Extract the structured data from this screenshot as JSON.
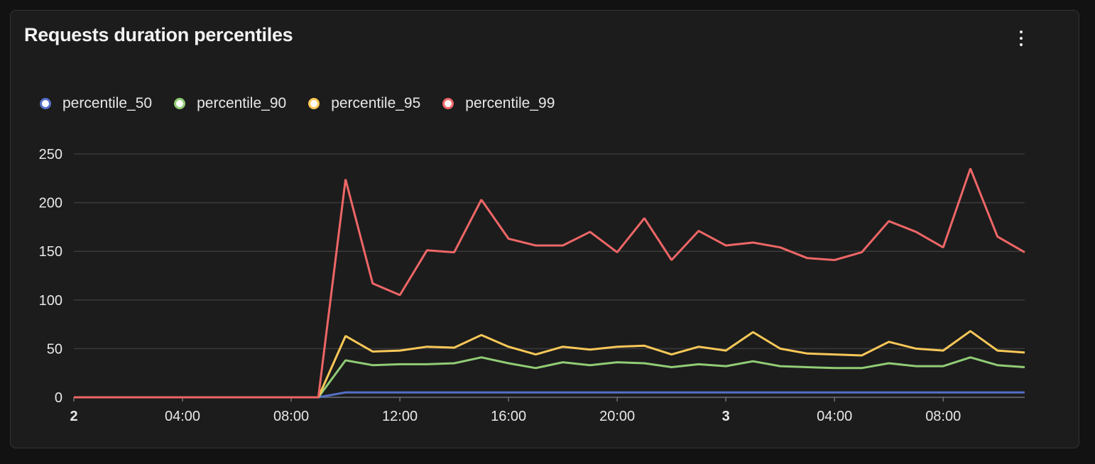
{
  "panel": {
    "title": "Requests duration percentiles",
    "menu_icon": "kebab-vertical-icon"
  },
  "chart_data": {
    "type": "line",
    "title": "",
    "xlabel": "",
    "ylabel": "",
    "ylim": [
      0,
      250
    ],
    "grid": true,
    "legend_position": "top-left",
    "y_ticks": [
      "0",
      "50",
      "100",
      "150",
      "200",
      "250"
    ],
    "x_ticks": [
      {
        "label": "2",
        "hour": 0,
        "bold": true
      },
      {
        "label": "04:00",
        "hour": 4
      },
      {
        "label": "08:00",
        "hour": 8
      },
      {
        "label": "12:00",
        "hour": 12
      },
      {
        "label": "16:00",
        "hour": 16
      },
      {
        "label": "20:00",
        "hour": 20
      },
      {
        "label": "3",
        "hour": 24,
        "bold": true
      },
      {
        "label": "04:00",
        "hour": 28
      },
      {
        "label": "08:00",
        "hour": 32
      }
    ],
    "x_hours": [
      0,
      1,
      2,
      3,
      4,
      5,
      6,
      7,
      8,
      9,
      10,
      11,
      12,
      13,
      14,
      15,
      16,
      17,
      18,
      19,
      20,
      21,
      22,
      23,
      24,
      25,
      26,
      27,
      28,
      29,
      30,
      31,
      32,
      33,
      34,
      35
    ],
    "series": [
      {
        "name": "percentile_50",
        "color": "#5470c6",
        "values": [
          0,
          0,
          0,
          0,
          0,
          0,
          0,
          0,
          0,
          0,
          5,
          5,
          5,
          5,
          5,
          5,
          5,
          5,
          5,
          5,
          5,
          5,
          5,
          5,
          5,
          5,
          5,
          5,
          5,
          5,
          5,
          5,
          5,
          5,
          5,
          5
        ]
      },
      {
        "name": "percentile_90",
        "color": "#91cc75",
        "values": [
          0,
          0,
          0,
          0,
          0,
          0,
          0,
          0,
          0,
          0,
          38,
          33,
          34,
          34,
          35,
          41,
          35,
          30,
          36,
          33,
          36,
          35,
          31,
          34,
          32,
          37,
          32,
          31,
          30,
          30,
          35,
          32,
          32,
          41,
          33,
          31
        ]
      },
      {
        "name": "percentile_95",
        "color": "#fac858",
        "values": [
          0,
          0,
          0,
          0,
          0,
          0,
          0,
          0,
          0,
          0,
          63,
          47,
          48,
          52,
          51,
          64,
          52,
          44,
          52,
          49,
          52,
          53,
          44,
          52,
          48,
          67,
          50,
          45,
          44,
          43,
          57,
          50,
          48,
          68,
          48,
          46
        ]
      },
      {
        "name": "percentile_99",
        "color": "#ee6666",
        "values": [
          0,
          0,
          0,
          0,
          0,
          0,
          0,
          0,
          0,
          0,
          224,
          117,
          105,
          151,
          149,
          203,
          163,
          156,
          156,
          170,
          149,
          184,
          141,
          171,
          156,
          159,
          154,
          143,
          141,
          149,
          181,
          170,
          154,
          235,
          165,
          149
        ]
      }
    ]
  }
}
